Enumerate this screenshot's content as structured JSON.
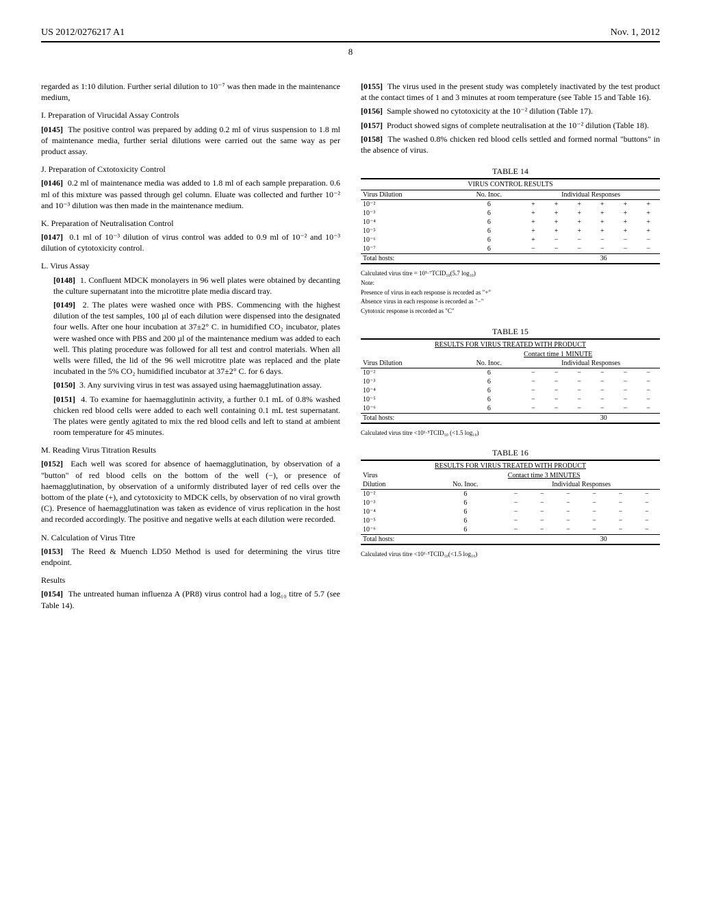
{
  "header": {
    "docnum": "US 2012/0276217 A1",
    "date": "Nov. 1, 2012",
    "page": "8"
  },
  "left": {
    "p0144b": "regarded as 1:10 dilution. Further serial dilution to 10⁻⁷ was then made in the maintenance medium,",
    "hI": "I. Preparation of Virucidal Assay Controls",
    "p0145n": "[0145]",
    "p0145": "The positive control was prepared by adding 0.2 ml of virus suspension to 1.8 ml of maintenance media, further serial dilutions were carried out the same way as per product assay.",
    "hJ": "J. Preparation of Cxtotoxicity Control",
    "p0146n": "[0146]",
    "p0146": "0.2 ml of maintenance media was added to 1.8 ml of each sample preparation. 0.6 ml of this mixture was passed through gel column. Eluate was collected and further 10⁻² and 10⁻³ dilution was then made in the maintenance medium.",
    "hK": "K. Preparation of Neutralisation Control",
    "p0147n": "[0147]",
    "p0147": "0.1 ml of 10⁻³ dilution of virus control was added to 0.9 ml of 10⁻² and 10⁻³ dilution of cytotoxicity control.",
    "hL": "L. Virus Assay",
    "p0148n": "[0148]",
    "p0148": "1. Confluent MDCK monolayers in 96 well plates were obtained by decanting the culture supernatant into the microtitre plate media discard tray.",
    "p0149n": "[0149]",
    "p0149": "2. The plates were washed once with PBS. Commencing with the highest dilution of the test samples, 100 µl of each dilution were dispensed into the designated four wells. After one hour incubation at 37±2° C. in humidified CO₂ incubator, plates were washed once with PBS and 200 µl of the maintenance medium was added to each well. This plating procedure was followed for all test and control materials. When all wells were filled, the lid of the 96 well microtitre plate was replaced and the plate incubated in the 5% CO₂ humidified incubator at 37±2° C. for 6 days.",
    "p0150n": "[0150]",
    "p0150": "3. Any surviving virus in test was assayed using haemagglutination assay.",
    "p0151n": "[0151]",
    "p0151": "4. To examine for haemagglutinin activity, a further 0.1 mL of 0.8% washed chicken red blood cells were added to each well containing 0.1 mL test supernatant. The plates were gently agitated to mix the red blood cells and left to stand at ambient room temperature for 45 minutes.",
    "hM": "M. Reading Virus Titration Results",
    "p0152n": "[0152]",
    "p0152": "Each well was scored for absence of haemagglutination, by observation of a \"button\" of red blood cells on the bottom of the well (−), or presence of haemagglutination, by observation of a uniformly distributed layer of red cells over the bottom of the plate (+), and cytotoxicity to MDCK cells, by observation of no viral growth (C). Presence of haemagglutination was taken as evidence of virus replication in the host and recorded accordingly. The positive and negative wells at each dilution were recorded.",
    "hN": "N. Calculation of Virus Titre",
    "p0153n": "[0153]",
    "p0153": "The Reed & Muench LD50 Method is used for determining the virus titre endpoint.",
    "hR": "Results",
    "p0154n": "[0154]",
    "p0154": "The untreated human influenza A (PR8) virus control had a log₁₀ titre of 5.7 (see Table 14)."
  },
  "right": {
    "p0155n": "[0155]",
    "p0155": "The virus used in the present study was completely inactivated by the test product at the contact times of 1 and 3 minutes at room temperature (see Table 15 and Table 16).",
    "p0156n": "[0156]",
    "p0156": "Sample showed no cytotoxicity at the 10⁻² dilution (Table 17).",
    "p0157n": "[0157]",
    "p0157": "Product showed signs of complete neutralisation at the 10⁻² dilution (Table 18).",
    "p0158n": "[0158]",
    "p0158": "The washed 0.8% chicken red blood cells settled and formed normal \"buttons\" in the absence of virus."
  },
  "table14": {
    "label": "TABLE 14",
    "title": "VIRUS CONTROL RESULTS",
    "col1": "Virus Dilution",
    "col2": "No. Inoc.",
    "col3": "Individual Responses",
    "rows": [
      {
        "d": "10⁻²",
        "n": "6",
        "r": [
          "+",
          "+",
          "+",
          "+",
          "+",
          "+"
        ]
      },
      {
        "d": "10⁻³",
        "n": "6",
        "r": [
          "+",
          "+",
          "+",
          "+",
          "+",
          "+"
        ]
      },
      {
        "d": "10⁻⁴",
        "n": "6",
        "r": [
          "+",
          "+",
          "+",
          "+",
          "+",
          "+"
        ]
      },
      {
        "d": "10⁻⁵",
        "n": "6",
        "r": [
          "+",
          "+",
          "+",
          "+",
          "+",
          "+"
        ]
      },
      {
        "d": "10⁻⁶",
        "n": "6",
        "r": [
          "+",
          "−",
          "−",
          "−",
          "−",
          "−"
        ]
      },
      {
        "d": "10⁻⁷",
        "n": "6",
        "r": [
          "−",
          "−",
          "−",
          "−",
          "−",
          "−"
        ]
      }
    ],
    "total_label": "Total hosts:",
    "total": "36",
    "footer1": "Calculated virus titre = 10⁵·⁷TCID₅₀(5.7 log₁₀)",
    "footer2": "Note:",
    "footer3": "Presence of virus in each response is recorded as \"+\"",
    "footer4": "Absence virus in each response is recorded as \"−\"",
    "footer5": "Cytotoxic response is recorded as \"C\""
  },
  "table15": {
    "label": "TABLE 15",
    "title": "RESULTS FOR VIRUS TREATED WITH PRODUCT",
    "contact": "Contact time 1 MINUTE",
    "col1": "Virus Dilution",
    "col2": "No. Inoc.",
    "col3": "Individual Responses",
    "rows": [
      {
        "d": "10⁻²",
        "n": "6",
        "r": [
          "−",
          "−",
          "−",
          "−",
          "−",
          "−"
        ]
      },
      {
        "d": "10⁻³",
        "n": "6",
        "r": [
          "−",
          "−",
          "−",
          "−",
          "−",
          "−"
        ]
      },
      {
        "d": "10⁻⁴",
        "n": "6",
        "r": [
          "−",
          "−",
          "−",
          "−",
          "−",
          "−"
        ]
      },
      {
        "d": "10⁻⁵",
        "n": "6",
        "r": [
          "−",
          "−",
          "−",
          "−",
          "−",
          "−"
        ]
      },
      {
        "d": "10⁻⁶",
        "n": "6",
        "r": [
          "−",
          "−",
          "−",
          "−",
          "−",
          "−"
        ]
      }
    ],
    "total_label": "Total hosts:",
    "total": "30",
    "footer1": "Calculated virus titre <10¹·⁵TCID₅₀ (<1.5 log₁₀)"
  },
  "table16": {
    "label": "TABLE 16",
    "title": "RESULTS FOR VIRUS TREATED WITH PRODUCT",
    "contact": "Contact time 3 MINUTES",
    "virus": "Virus",
    "col1": "Dilution",
    "col2": "No. Inoc.",
    "col3": "Individual Responses",
    "rows": [
      {
        "d": "10⁻²",
        "n": "6",
        "r": [
          "−",
          "−",
          "−",
          "−",
          "−",
          "−"
        ]
      },
      {
        "d": "10⁻³",
        "n": "6",
        "r": [
          "−",
          "−",
          "−",
          "−",
          "−",
          "−"
        ]
      },
      {
        "d": "10⁻⁴",
        "n": "6",
        "r": [
          "−",
          "−",
          "−",
          "−",
          "−",
          "−"
        ]
      },
      {
        "d": "10⁻⁵",
        "n": "6",
        "r": [
          "−",
          "−",
          "−",
          "−",
          "−",
          "−"
        ]
      },
      {
        "d": "10⁻⁶",
        "n": "6",
        "r": [
          "−",
          "−",
          "−",
          "−",
          "−",
          "−"
        ]
      }
    ],
    "total_label": "Total hosts:",
    "total": "30",
    "footer1": "Calculated virus titre <10¹·⁵TCID₅₀(<1.5 log₁₀)"
  }
}
